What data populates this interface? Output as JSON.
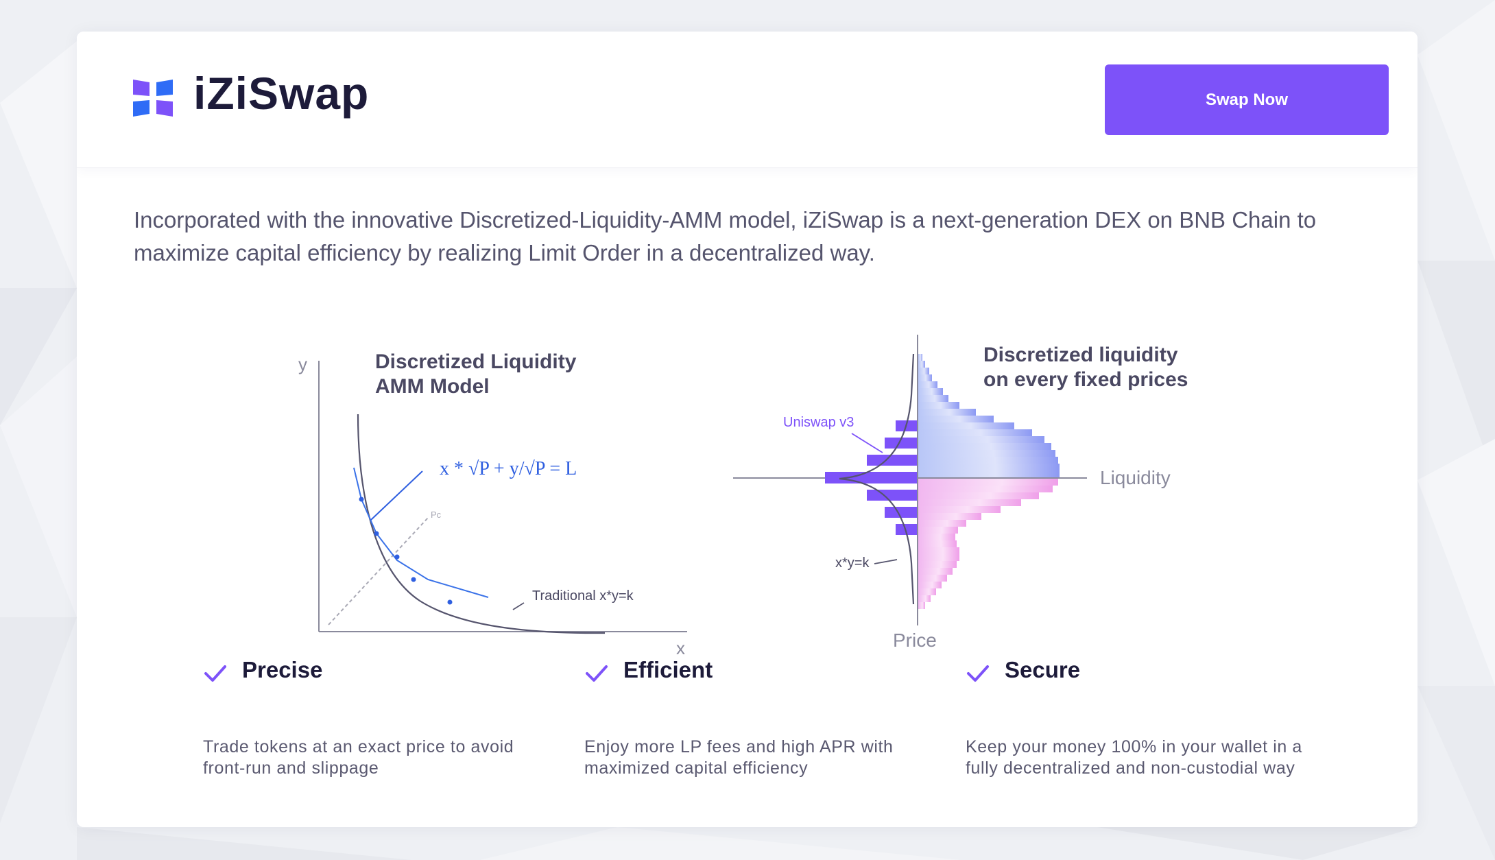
{
  "header": {
    "brand_name": "iZiSwap",
    "swap_button_label": "Swap Now",
    "accent_color": "#7d52f9",
    "logo_colors": [
      "#7d52f9",
      "#2f6cf6"
    ]
  },
  "intro": {
    "text": "Incorporated with the innovative Discretized-Liquidity-AMM model, iZiSwap is a next-generation DEX on BNB Chain to maximize capital efficiency by realizing Limit Order in a decentralized way."
  },
  "amm_diagram": {
    "title_line1": "Discretized Liquidity",
    "title_line2": "AMM Model",
    "y_axis_label": "y",
    "x_axis_label": "x",
    "formula": "x * √P + y/√P = L",
    "pc_label": "Pc",
    "curve_label": "Traditional x*y=k"
  },
  "liquidity_diagram": {
    "title_line1": "Discretized liquidity",
    "title_line2": "on every fixed prices",
    "uniswap_label": "Uniswap v3",
    "curve_label": "x*y=k",
    "liquidity_label": "Liquidity",
    "price_label": "Price"
  },
  "features": [
    {
      "icon": "check-icon",
      "title": "Precise",
      "description": "Trade tokens at an exact price to avoid front-run and slippage"
    },
    {
      "icon": "check-icon",
      "title": "Efficient",
      "description": "Enjoy more LP fees and high APR with maximized capital efficiency"
    },
    {
      "icon": "check-icon",
      "title": "Secure",
      "description": "Keep your money 100% in your wallet in a fully decentralized and non-custodial way"
    }
  ]
}
